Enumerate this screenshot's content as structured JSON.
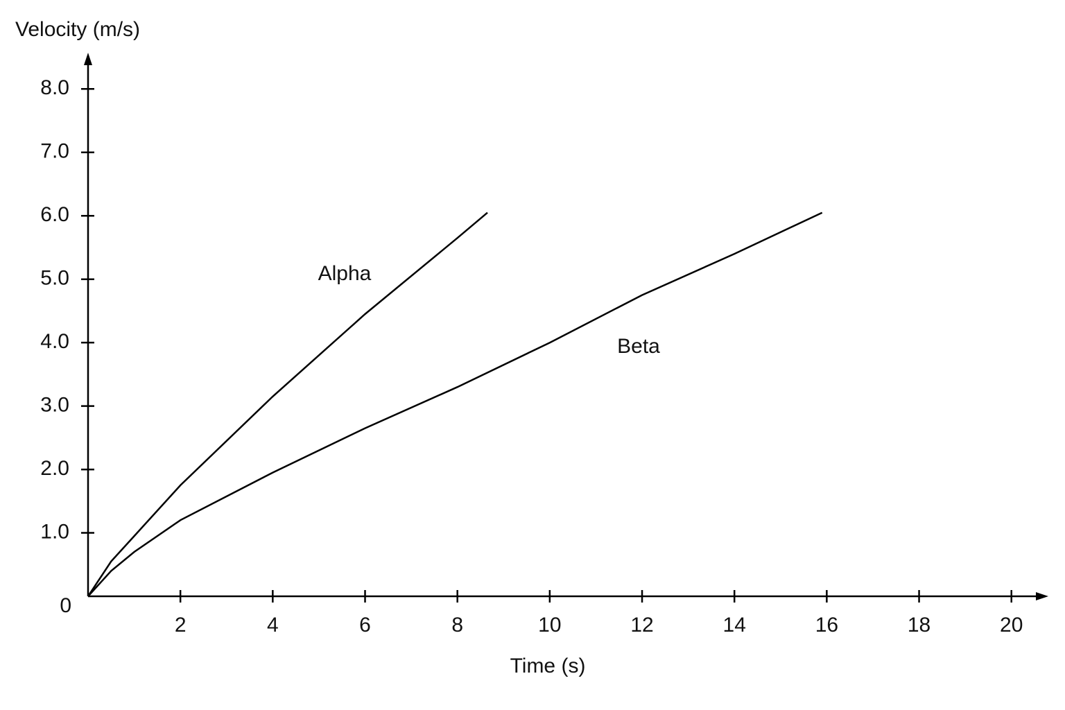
{
  "chart_data": {
    "type": "line",
    "y_label": "Velocity (m/s)",
    "x_label": "Time (s)",
    "series": [
      {
        "name": "Alpha",
        "color": "#000000",
        "x": [
          0,
          0.5,
          1,
          2,
          4,
          6,
          8,
          8.65
        ],
        "values": [
          0,
          0.55,
          0.95,
          1.75,
          3.15,
          4.45,
          5.65,
          6.05
        ]
      },
      {
        "name": "Beta",
        "color": "#000000",
        "x": [
          0,
          0.5,
          1,
          2,
          4,
          6,
          8,
          10,
          12,
          14,
          15.9
        ],
        "values": [
          0,
          0.4,
          0.7,
          1.2,
          1.95,
          2.65,
          3.3,
          4.0,
          4.75,
          5.4,
          6.05
        ]
      }
    ],
    "xlim": [
      0,
      20.8
    ],
    "ylim": [
      0,
      8.55
    ],
    "xticks": [
      2,
      4,
      6,
      8,
      10,
      12,
      14,
      16,
      18,
      20
    ],
    "yticks": [
      0,
      {
        "value": 1,
        "label": "1.0"
      },
      {
        "value": 2,
        "label": "2.0"
      },
      {
        "value": 3,
        "label": "3.0"
      },
      {
        "value": 4,
        "label": "4.0"
      },
      {
        "value": 5,
        "label": "5.0"
      },
      {
        "value": 6,
        "label": "6.0"
      },
      {
        "value": 7,
        "label": "7.0"
      },
      {
        "value": 8,
        "label": "8.0"
      }
    ],
    "grid": false
  }
}
